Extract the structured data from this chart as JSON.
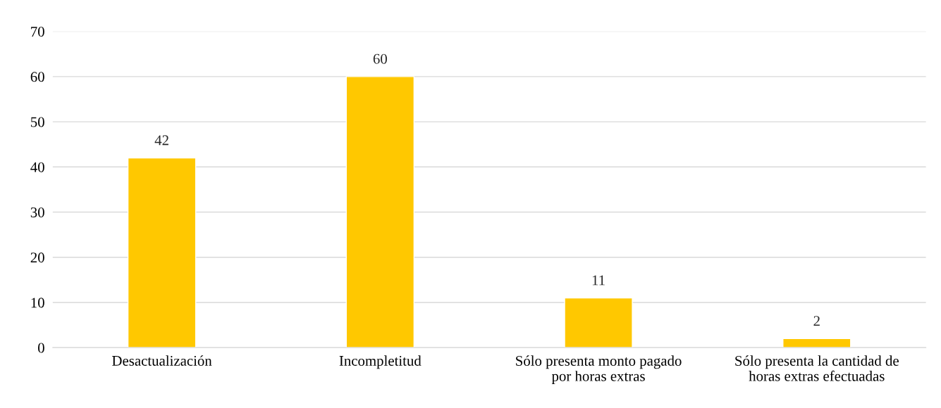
{
  "chart_data": {
    "type": "bar",
    "categories": [
      "Desactualización",
      "Incompletitud",
      "Sólo presenta monto pagado\npor horas extras",
      "Sólo presenta la cantidad de\nhoras extras efectuadas"
    ],
    "values": [
      42,
      60,
      11,
      2
    ],
    "color": "#ffc800",
    "ylim": [
      0,
      70
    ],
    "yticks": [
      0,
      10,
      20,
      30,
      40,
      50,
      60,
      70
    ],
    "grid": "y",
    "data_labels": true,
    "legend": false
  }
}
